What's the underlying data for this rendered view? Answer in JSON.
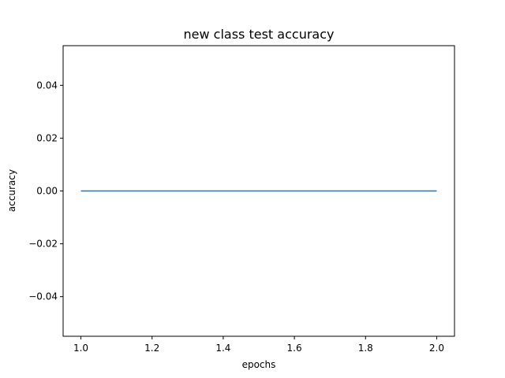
{
  "chart_data": {
    "type": "line",
    "title": "new class test accuracy",
    "xlabel": "epochs",
    "ylabel": "accuracy",
    "xlim": [
      0.95,
      2.05
    ],
    "ylim": [
      -0.055,
      0.055
    ],
    "grid": false,
    "x_ticks": [
      1.0,
      1.2,
      1.4,
      1.6,
      1.8,
      2.0
    ],
    "x_tick_labels": [
      "1.0",
      "1.2",
      "1.4",
      "1.6",
      "1.8",
      "2.0"
    ],
    "y_ticks": [
      -0.04,
      -0.02,
      0.0,
      0.02,
      0.04
    ],
    "y_tick_labels": [
      "−0.04",
      "−0.02",
      "0.00",
      "0.02",
      "0.04"
    ],
    "series": [
      {
        "x": [
          1,
          2
        ],
        "values": [
          0.0,
          0.0
        ],
        "color": "#1f77b4"
      }
    ]
  }
}
